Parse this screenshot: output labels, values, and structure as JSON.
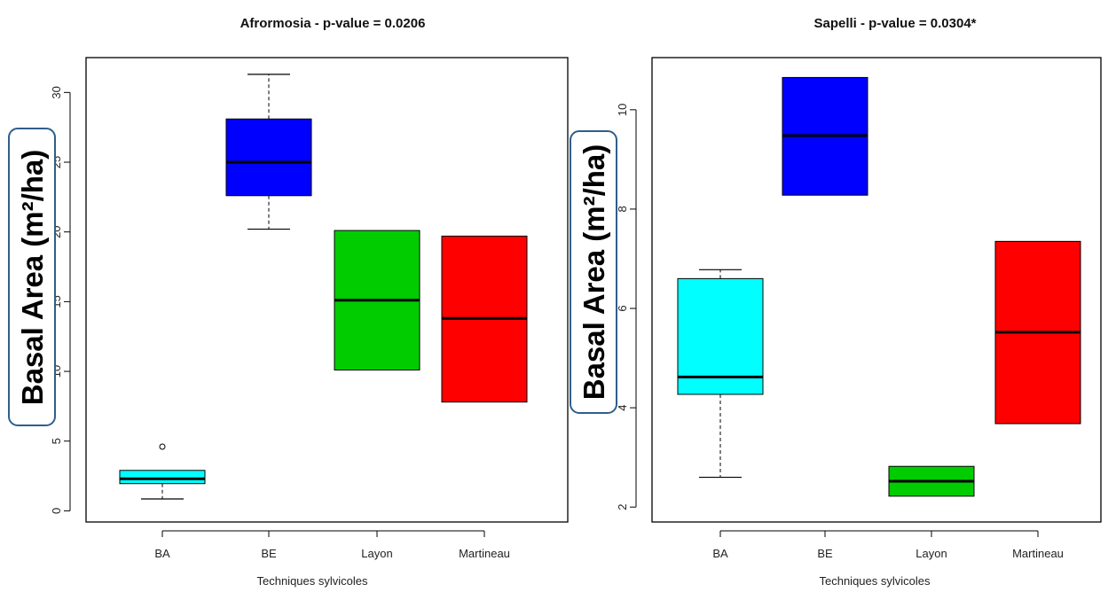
{
  "chart_data": [
    {
      "type": "boxplot",
      "title": "Afrormosia - p-value = 0.0206",
      "xlabel": "Techniques sylvicoles",
      "ylabel": "Basal Area (m²/ha)",
      "categories": [
        "BA",
        "BE",
        "Layon",
        "Martineau"
      ],
      "ylim": [
        -0.8,
        32.5
      ],
      "yticks": [
        0,
        5,
        10,
        15,
        20,
        25,
        30
      ],
      "boxes": [
        {
          "name": "BA",
          "color": "#00ffff",
          "min": 0.85,
          "q1": 1.95,
          "median": 2.3,
          "q3": 2.9,
          "max": 2.9,
          "outliers": [
            4.6
          ]
        },
        {
          "name": "BE",
          "color": "#0000ff",
          "min": 20.2,
          "q1": 22.6,
          "median": 25.0,
          "q3": 28.1,
          "max": 31.3,
          "outliers": []
        },
        {
          "name": "Layon",
          "color": "#00cc00",
          "min": 10.1,
          "q1": 10.1,
          "median": 15.1,
          "q3": 20.1,
          "max": 20.1,
          "outliers": []
        },
        {
          "name": "Martineau",
          "color": "#ff0000",
          "min": 7.8,
          "q1": 7.8,
          "median": 13.8,
          "q3": 19.7,
          "max": 19.7,
          "outliers": []
        }
      ]
    },
    {
      "type": "boxplot",
      "title": "Sapelli - p-value = 0.0304*",
      "xlabel": "Techniques sylvicoles",
      "ylabel": "Basal Area (m²/ha)",
      "categories": [
        "BA",
        "BE",
        "Layon",
        "Martineau"
      ],
      "ylim": [
        1.7,
        11.05
      ],
      "yticks": [
        2,
        4,
        6,
        8,
        10
      ],
      "boxes": [
        {
          "name": "BA",
          "color": "#00ffff",
          "min": 2.6,
          "q1": 4.27,
          "median": 4.62,
          "q3": 6.6,
          "max": 6.78,
          "outliers": []
        },
        {
          "name": "BE",
          "color": "#0000ff",
          "min": 8.28,
          "q1": 8.28,
          "median": 9.48,
          "q3": 10.65,
          "max": 10.65,
          "outliers": []
        },
        {
          "name": "Layon",
          "color": "#00cc00",
          "min": 2.22,
          "q1": 2.22,
          "median": 2.52,
          "q3": 2.82,
          "max": 2.82,
          "outliers": []
        },
        {
          "name": "Martineau",
          "color": "#ff0000",
          "min": 3.68,
          "q1": 3.68,
          "median": 5.52,
          "q3": 7.35,
          "max": 7.35,
          "outliers": []
        }
      ]
    }
  ]
}
